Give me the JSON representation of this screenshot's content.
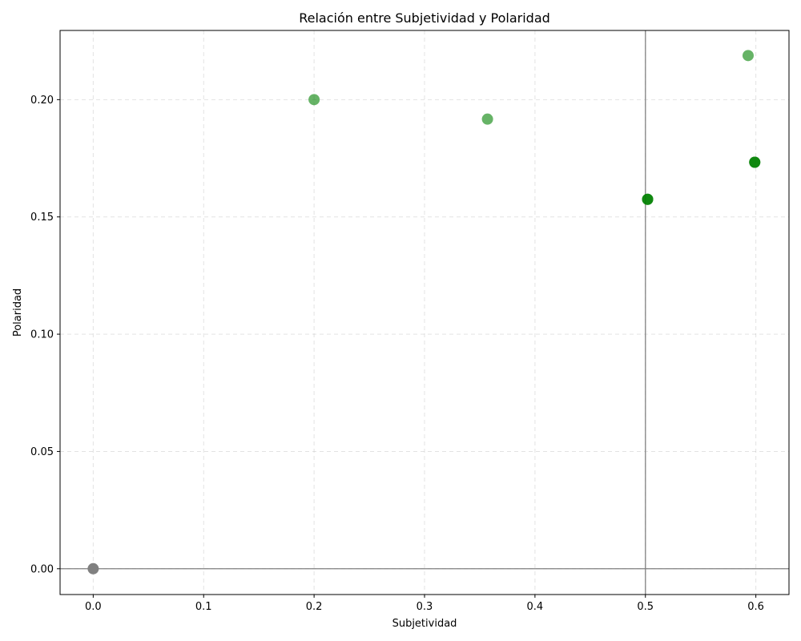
{
  "chart_data": {
    "type": "scatter",
    "title": "Relación entre Subjetividad y Polaridad",
    "xlabel": "Subjetividad",
    "ylabel": "Polaridad",
    "xlim": [
      -0.03,
      0.63
    ],
    "ylim": [
      -0.011,
      0.2295
    ],
    "xticks": [
      0.0,
      0.1,
      0.2,
      0.3,
      0.4,
      0.5,
      0.6
    ],
    "xtick_labels": [
      "0.0",
      "0.1",
      "0.2",
      "0.3",
      "0.4",
      "0.5",
      "0.6"
    ],
    "yticks": [
      0.0,
      0.05,
      0.1,
      0.15,
      0.2
    ],
    "ytick_labels": [
      "0.00",
      "0.05",
      "0.10",
      "0.15",
      "0.20"
    ],
    "grid": true,
    "reference_lines": {
      "vertical_x": 0.5,
      "horizontal_y": 0.0
    },
    "points": [
      {
        "x": 0.0,
        "y": 0.0,
        "color": "#808080",
        "opacity": 1.0
      },
      {
        "x": 0.2,
        "y": 0.2,
        "color": "#008000",
        "opacity": 0.6
      },
      {
        "x": 0.357,
        "y": 0.1917,
        "color": "#008000",
        "opacity": 0.6
      },
      {
        "x": 0.502,
        "y": 0.1575,
        "color": "#008000",
        "opacity": 0.6
      },
      {
        "x": 0.502,
        "y": 0.1575,
        "color": "#008000",
        "opacity": 0.6
      },
      {
        "x": 0.502,
        "y": 0.1575,
        "color": "#008000",
        "opacity": 0.6
      },
      {
        "x": 0.593,
        "y": 0.2188,
        "color": "#008000",
        "opacity": 0.6
      },
      {
        "x": 0.599,
        "y": 0.1733,
        "color": "#008000",
        "opacity": 0.6
      },
      {
        "x": 0.599,
        "y": 0.1733,
        "color": "#008000",
        "opacity": 0.6
      },
      {
        "x": 0.599,
        "y": 0.1733,
        "color": "#008000",
        "opacity": 0.6
      }
    ]
  }
}
